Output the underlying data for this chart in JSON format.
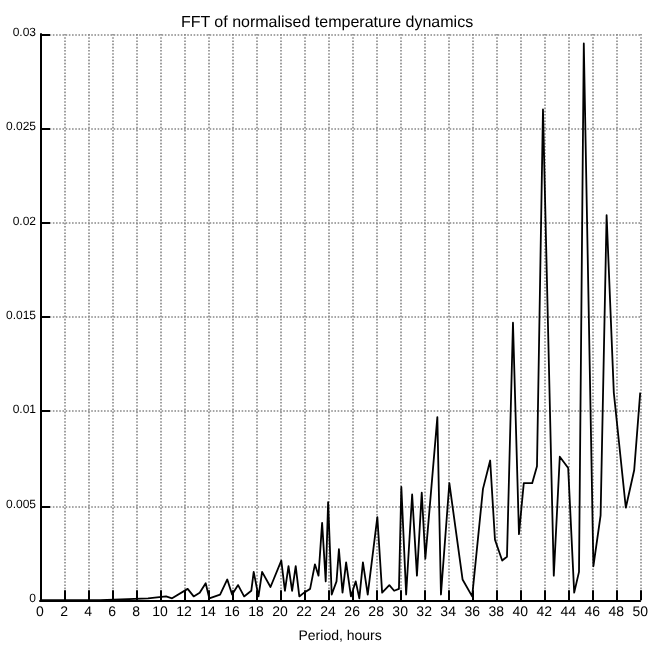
{
  "chart_data": {
    "type": "line",
    "title": "FFT of normalised temperature dynamics",
    "xlabel": "Period, hours",
    "xlim": [
      0,
      50
    ],
    "xticks": [
      0,
      2,
      4,
      6,
      8,
      10,
      12,
      14,
      16,
      18,
      20,
      22,
      24,
      26,
      28,
      30,
      32,
      34,
      36,
      38,
      40,
      42,
      44,
      46,
      48,
      50
    ],
    "ylim": [
      0,
      0.03
    ],
    "yticks": [
      0,
      0.005,
      0.01,
      0.015,
      0.02,
      0.025,
      0.03
    ],
    "grid": true,
    "line_style": "solid",
    "marker": "none",
    "series": [
      {
        "color": "#000000",
        "x": [
          0,
          5,
          9,
          10.5,
          11,
          12.3,
          12.8,
          13.3,
          13.8,
          14.1,
          15,
          15.6,
          16,
          16.5,
          17,
          17.6,
          17.8,
          18.2,
          18.5,
          19.2,
          20.1,
          20.4,
          20.7,
          21,
          21.3,
          21.6,
          22,
          22.5,
          22.9,
          23.2,
          23.5,
          23.8,
          24,
          24.3,
          24.7,
          24.9,
          25.2,
          25.5,
          25.9,
          26.3,
          26.6,
          26.9,
          27.3,
          28.1,
          28.5,
          29.1,
          29.5,
          29.9,
          30.1,
          30.5,
          31,
          31.4,
          31.8,
          32.1,
          33.1,
          33.4,
          34.1,
          35.2,
          36,
          36.9,
          37.5,
          37.9,
          38.5,
          38.9,
          39.4,
          39.9,
          40.3,
          41,
          41.4,
          41.9,
          42.8,
          43.3,
          44,
          44.5,
          44.9,
          45.3,
          46.1,
          46.7,
          47.2,
          47.8,
          48.8,
          49.5,
          50
        ],
        "values": [
          0,
          0,
          0.0001,
          0.0002,
          0.0001,
          0.0006,
          0.0002,
          0.0004,
          0.0009,
          0.0001,
          0.0003,
          0.0011,
          0.0003,
          0.0008,
          0.0002,
          0.0005,
          0.0015,
          0.0002,
          0.0015,
          0.0007,
          0.0021,
          0.0005,
          0.0018,
          0.0005,
          0.0018,
          0.0002,
          0.0004,
          0.0006,
          0.0019,
          0.0013,
          0.0041,
          0.001,
          0.0052,
          0.0003,
          0.001,
          0.0027,
          0.0004,
          0.002,
          0.0002,
          0.001,
          0.0001,
          0.002,
          0.0003,
          0.0044,
          0.0004,
          0.0008,
          0.0005,
          0.0006,
          0.006,
          0.0003,
          0.0056,
          0.0013,
          0.0057,
          0.0022,
          0.0097,
          0.0003,
          0.0062,
          0.0011,
          0.0002,
          0.0059,
          0.0074,
          0.0032,
          0.0021,
          0.0023,
          0.0147,
          0.0035,
          0.0062,
          0.0062,
          0.0071,
          0.026,
          0.0013,
          0.0076,
          0.007,
          0.0004,
          0.0015,
          0.0295,
          0.0018,
          0.0045,
          0.0204,
          0.011,
          0.0049,
          0.0069,
          0.011
        ]
      }
    ]
  }
}
